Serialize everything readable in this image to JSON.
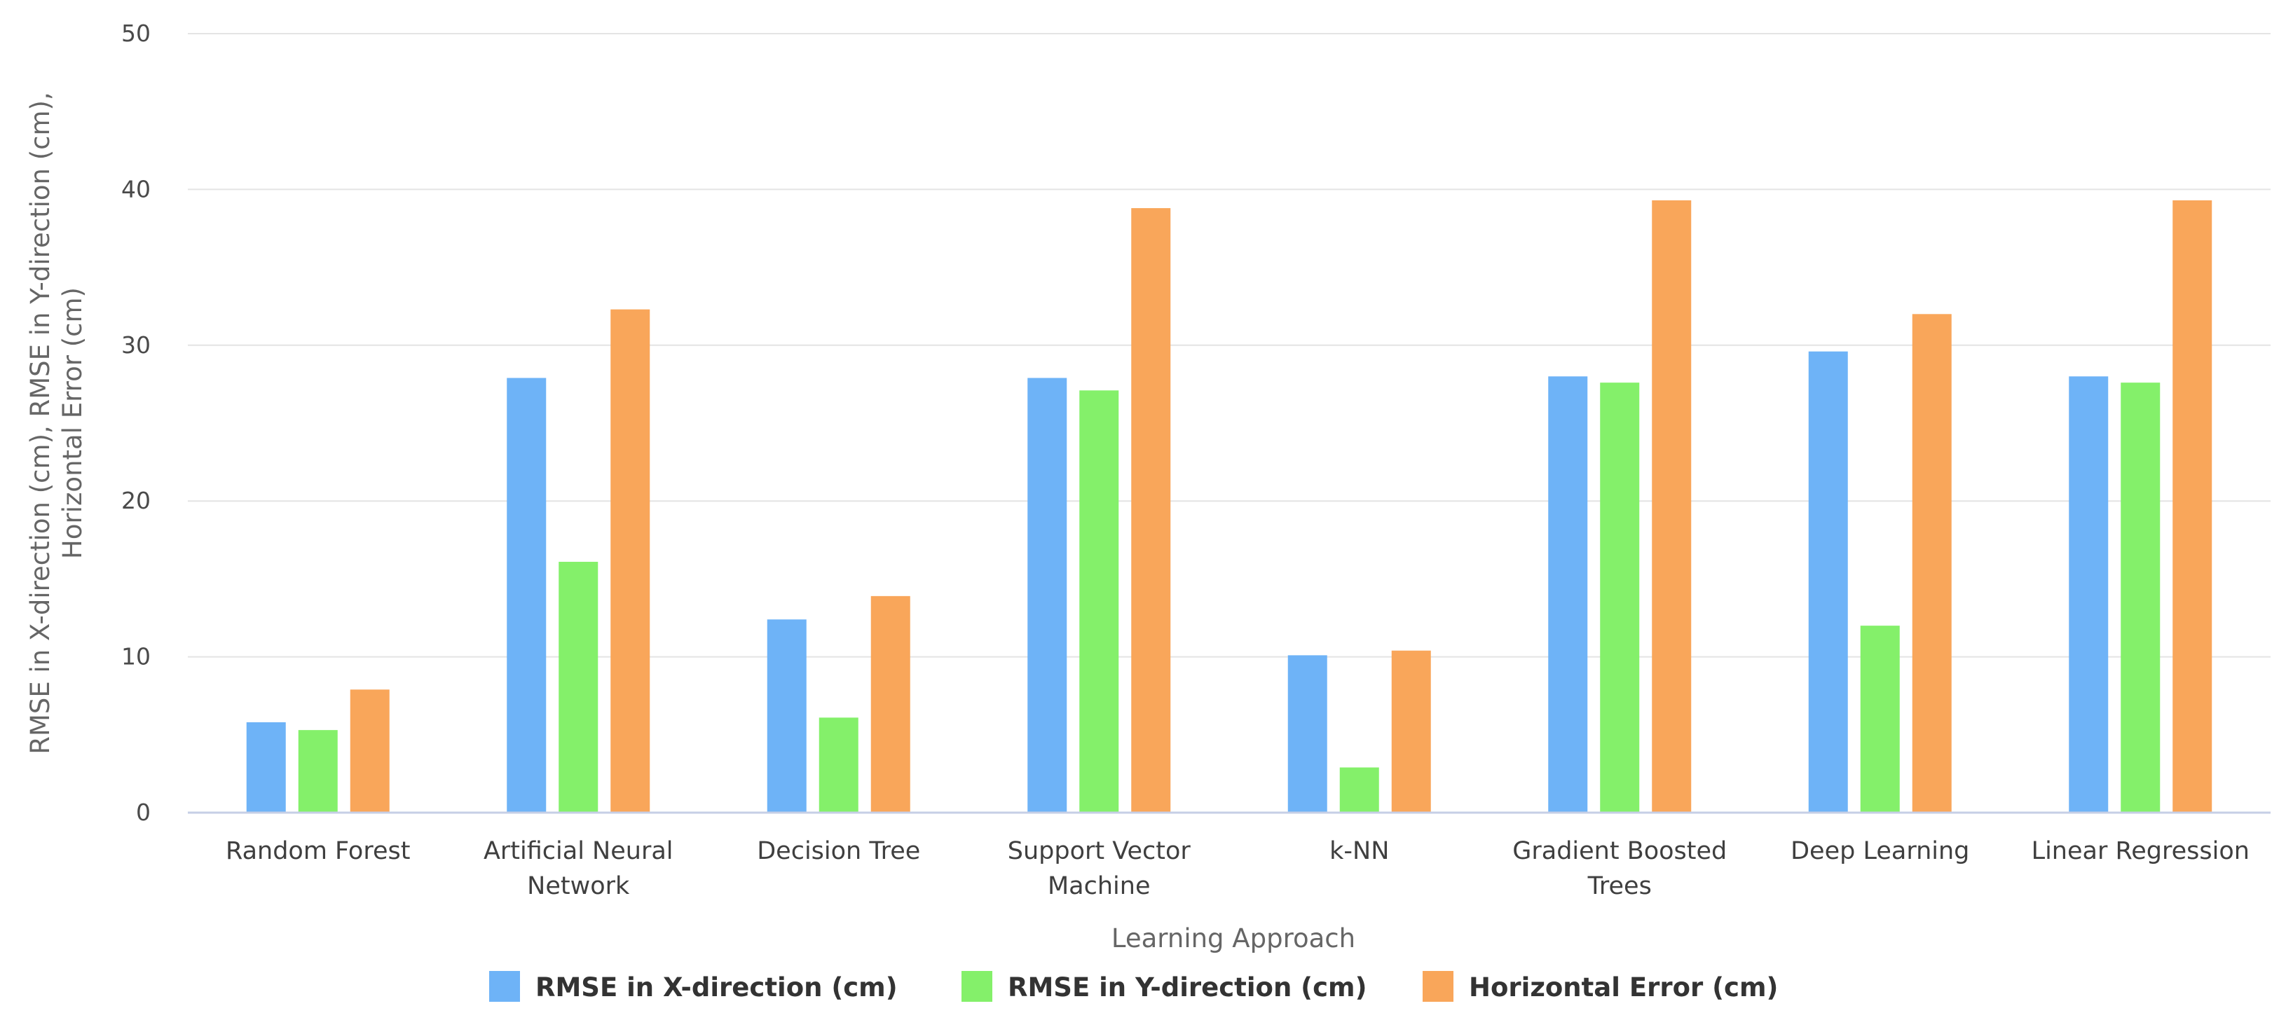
{
  "chart_data": {
    "type": "bar",
    "title": "",
    "xlabel": "Learning Approach",
    "ylabel_lines": [
      "RMSE in X-direction (cm), RMSE in Y-direction (cm),",
      "Horizontal Error (cm)"
    ],
    "ylim": [
      0,
      50
    ],
    "yticks": [
      0,
      10,
      20,
      30,
      40,
      50
    ],
    "grid": true,
    "legend_position": "bottom-center",
    "categories": [
      [
        "Random Forest"
      ],
      [
        "Artificial Neural",
        "Network"
      ],
      [
        "Decision Tree"
      ],
      [
        "Support Vector",
        "Machine"
      ],
      [
        "k-NN"
      ],
      [
        "Gradient Boosted",
        "Trees"
      ],
      [
        "Deep Learning"
      ],
      [
        "Linear Regression"
      ]
    ],
    "series": [
      {
        "name": "RMSE in X-direction (cm)",
        "color": "#6eb3f7",
        "values": [
          5.8,
          27.9,
          12.4,
          27.9,
          10.1,
          28.0,
          29.6,
          28.0
        ]
      },
      {
        "name": "RMSE in Y-direction (cm)",
        "color": "#84f06a",
        "values": [
          5.3,
          16.1,
          6.1,
          27.1,
          2.9,
          27.6,
          12.0,
          27.6
        ]
      },
      {
        "name": "Horizontal Error (cm)",
        "color": "#f9a65a",
        "values": [
          7.9,
          32.3,
          13.9,
          38.8,
          10.4,
          39.3,
          32.0,
          39.3
        ]
      }
    ]
  }
}
